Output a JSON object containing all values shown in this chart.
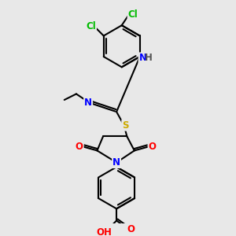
{
  "bg_color": "#e8e8e8",
  "bond_color": "#000000",
  "bond_width": 1.5,
  "atom_colors": {
    "N": "#0000ff",
    "O": "#ff0000",
    "S": "#ccaa00",
    "Cl": "#00bb00",
    "C": "#000000",
    "H": "#555555"
  },
  "font_size": 8.5,
  "figsize": [
    3.0,
    3.0
  ],
  "dpi": 100
}
